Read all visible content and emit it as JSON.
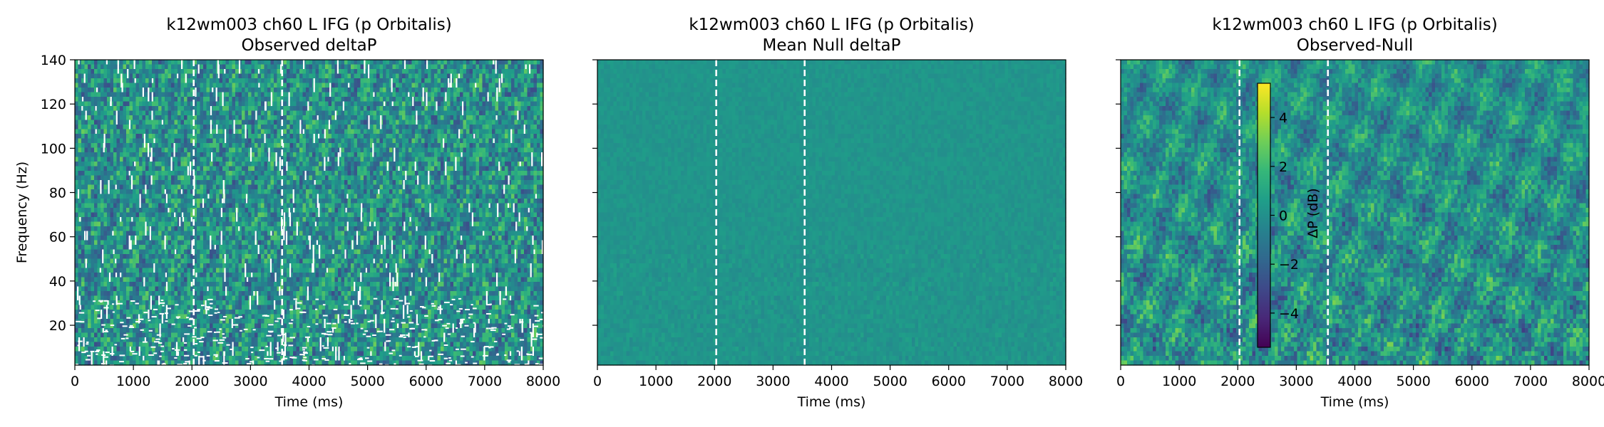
{
  "colors": {
    "colormap": [
      "#440154",
      "#482878",
      "#3e4989",
      "#31688e",
      "#26828e",
      "#1f9e89",
      "#35b779",
      "#6ece58",
      "#b5de2b",
      "#fde725"
    ],
    "marker_line": "#ffffff",
    "mask": "#ffffff"
  },
  "chart_data": [
    {
      "type": "heatmap",
      "title": [
        "k12wm003 ch60 L IFG (p Orbitalis)",
        "Observed deltaP"
      ],
      "xlabel": "Time (ms)",
      "ylabel": "Frequency (Hz)",
      "xlim": [
        0,
        8000
      ],
      "ylim": [
        2,
        140
      ],
      "xticks": [
        "0",
        "1000",
        "2000",
        "3000",
        "4000",
        "5000",
        "6000",
        "7000",
        "8000"
      ],
      "yticks": [
        "20",
        "40",
        "60",
        "80",
        "100",
        "120",
        "140"
      ],
      "show_ytick_labels": true,
      "texture": "observed",
      "value_range": [
        -5,
        5
      ],
      "masked": true,
      "event_lines_ms": [
        2030,
        3540
      ]
    },
    {
      "type": "heatmap",
      "title": [
        "k12wm003 ch60 L IFG (p Orbitalis)",
        "Mean Null deltaP"
      ],
      "xlabel": "Time (ms)",
      "ylabel": "",
      "xlim": [
        0,
        8000
      ],
      "ylim": [
        2,
        140
      ],
      "xticks": [
        "0",
        "1000",
        "2000",
        "3000",
        "4000",
        "5000",
        "6000",
        "7000",
        "8000"
      ],
      "yticks": [
        "20",
        "40",
        "60",
        "80",
        "100",
        "120",
        "140"
      ],
      "show_ytick_labels": false,
      "texture": "null",
      "value_range": [
        -5,
        5
      ],
      "masked": false,
      "event_lines_ms": [
        2030,
        3540
      ]
    },
    {
      "type": "heatmap",
      "title": [
        "k12wm003 ch60 L IFG (p Orbitalis)",
        "Observed-Null"
      ],
      "xlabel": "Time (ms)",
      "ylabel": "",
      "xlim": [
        0,
        8000
      ],
      "ylim": [
        2,
        140
      ],
      "xticks": [
        "0",
        "1000",
        "2000",
        "3000",
        "4000",
        "5000",
        "6000",
        "7000",
        "8000"
      ],
      "yticks": [
        "20",
        "40",
        "60",
        "80",
        "100",
        "120",
        "140"
      ],
      "show_ytick_labels": false,
      "texture": "diff",
      "value_range": [
        -5,
        5
      ],
      "masked": false,
      "event_lines_ms": [
        2030,
        3540
      ],
      "colorbar": {
        "label": "ΔP (dB)",
        "range": [
          -5.4,
          5.4
        ],
        "ticks": [
          4,
          2,
          0,
          -2,
          -4
        ],
        "tick_labels": [
          "4",
          "2",
          "0",
          "−2",
          "−4"
        ]
      }
    }
  ]
}
